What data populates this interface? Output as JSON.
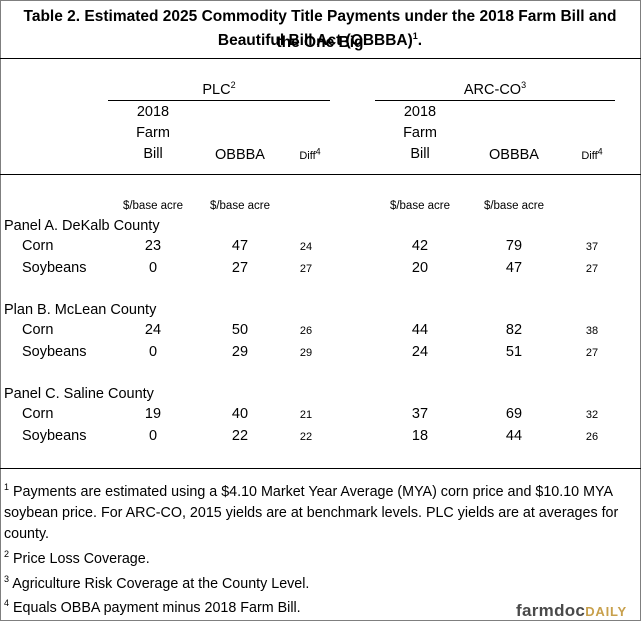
{
  "title": {
    "line1": "Table 2. Estimated 2025 Commodity Title Payments under the 2018 Farm Bill and the One Big",
    "line2": "Beautiful Bill Act (OBBBA)",
    "footnote_mark": "1",
    "end": "."
  },
  "groups": {
    "plc": {
      "label": "PLC",
      "mark": "2"
    },
    "arc": {
      "label": "ARC-CO",
      "mark": "3"
    }
  },
  "columns": {
    "farm_bill": [
      "2018",
      "Farm",
      "Bill"
    ],
    "obbba": "OBBBA",
    "diff": "Diff",
    "diff_mark": "4"
  },
  "units": "$/base acre",
  "panels": [
    {
      "label": "Panel A. DeKalb County",
      "rows": [
        {
          "crop": "Corn",
          "plc_2018": "23",
          "plc_obbba": "47",
          "plc_diff": "24",
          "arc_2018": "42",
          "arc_obbba": "79",
          "arc_diff": "37"
        },
        {
          "crop": "Soybeans",
          "plc_2018": "0",
          "plc_obbba": "27",
          "plc_diff": "27",
          "arc_2018": "20",
          "arc_obbba": "47",
          "arc_diff": "27"
        }
      ]
    },
    {
      "label": "Plan B. McLean County",
      "rows": [
        {
          "crop": "Corn",
          "plc_2018": "24",
          "plc_obbba": "50",
          "plc_diff": "26",
          "arc_2018": "44",
          "arc_obbba": "82",
          "arc_diff": "38"
        },
        {
          "crop": "Soybeans",
          "plc_2018": "0",
          "plc_obbba": "29",
          "plc_diff": "29",
          "arc_2018": "24",
          "arc_obbba": "51",
          "arc_diff": "27"
        }
      ]
    },
    {
      "label": "Panel C. Saline County",
      "rows": [
        {
          "crop": "Corn",
          "plc_2018": "19",
          "plc_obbba": "40",
          "plc_diff": "21",
          "arc_2018": "37",
          "arc_obbba": "69",
          "arc_diff": "32"
        },
        {
          "crop": "Soybeans",
          "plc_2018": "0",
          "plc_obbba": "22",
          "plc_diff": "22",
          "arc_2018": "18",
          "arc_obbba": "44",
          "arc_diff": "26"
        }
      ]
    }
  ],
  "footnotes": [
    {
      "mark": "1",
      "lines": [
        "Payments are estimated using a $4.10 Market Year Average (MYA) corn price and $10.10 MYA",
        "soybean price.  For ARC-CO, 2015 yields are at benchmark levels.  PLC yields are at averages for",
        "county."
      ]
    },
    {
      "mark": "2",
      "lines": [
        "Price Loss Coverage."
      ]
    },
    {
      "mark": "3",
      "lines": [
        "Agriculture Risk Coverage at the County Level."
      ]
    },
    {
      "mark": "4",
      "lines": [
        "Equals OBBA payment minus 2018 Farm Bill."
      ]
    }
  ],
  "logo": {
    "main": "farmdoc",
    "accent": "DAILY"
  }
}
